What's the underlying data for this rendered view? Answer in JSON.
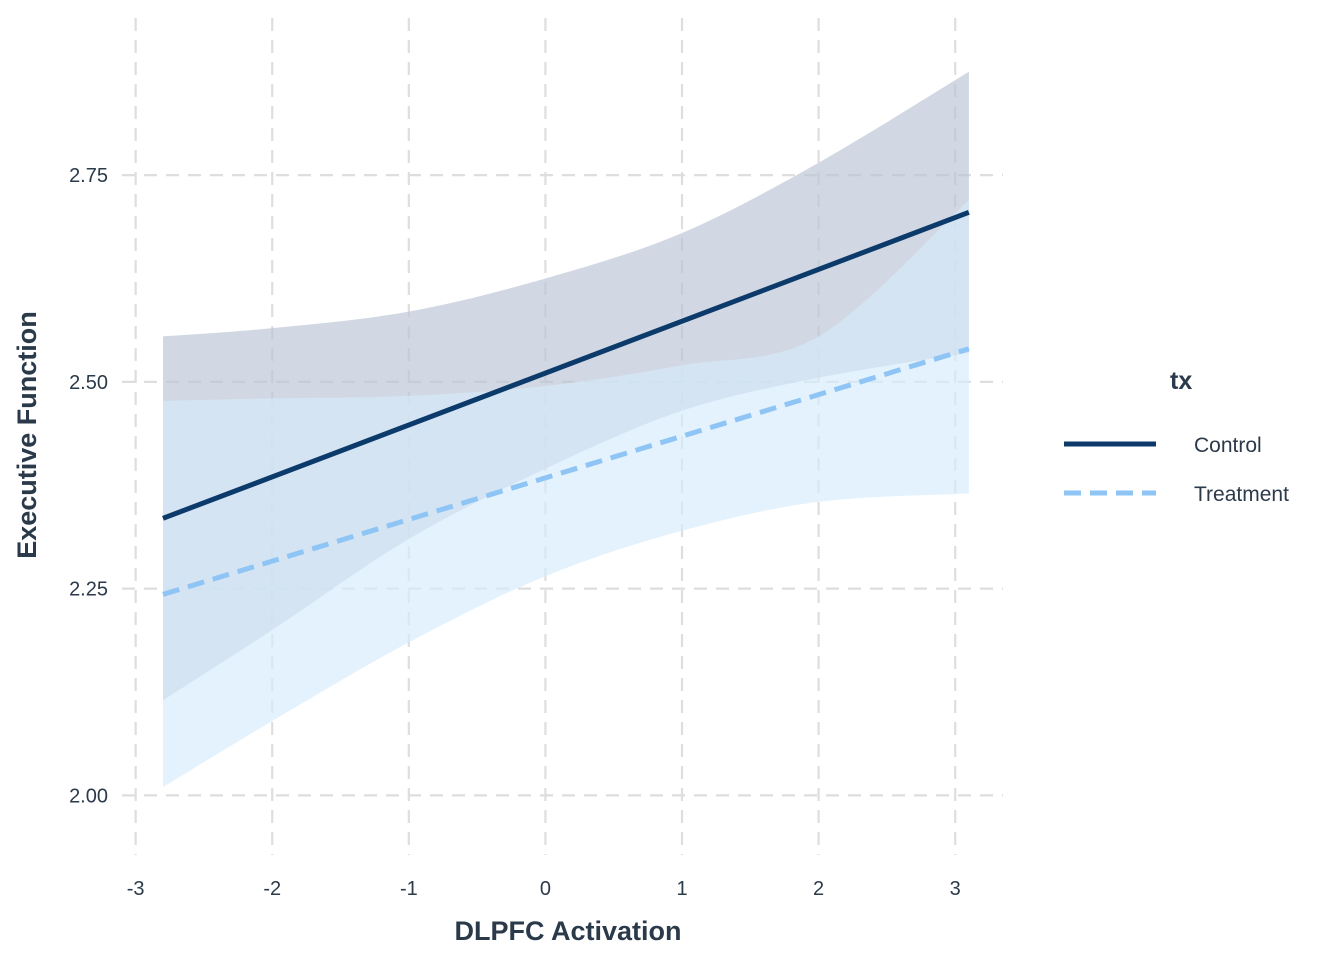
{
  "chart_data": {
    "type": "line",
    "xlabel": "DLPFC Activation",
    "ylabel": "Executive Function",
    "xlim": [
      -3.1,
      3.35
    ],
    "ylim": [
      1.94,
      2.94
    ],
    "x_ticks": [
      -3,
      -2,
      -1,
      0,
      1,
      2,
      3
    ],
    "x_tick_labels": [
      "-3",
      "-2",
      "-1",
      "0",
      "1",
      "2",
      "3"
    ],
    "y_ticks": [
      2.0,
      2.25,
      2.5,
      2.75
    ],
    "y_tick_labels": [
      "2.00",
      "2.25",
      "2.50",
      "2.75"
    ],
    "grid": true,
    "legend": {
      "title": "tx",
      "position": "right"
    },
    "series": [
      {
        "name": "Control",
        "color": "#0b3a6b",
        "line_style": "solid",
        "ribbon_color": "#b9c3d4",
        "x": [
          -2.8,
          3.1
        ],
        "y": [
          2.335,
          2.705
        ],
        "ci_x": [
          -2.8,
          -2,
          -1,
          0,
          1,
          2,
          3.1
        ],
        "ci_lower": [
          2.115,
          2.2,
          2.31,
          2.395,
          2.465,
          2.505,
          2.535
        ],
        "ci_upper": [
          2.555,
          2.565,
          2.585,
          2.625,
          2.68,
          2.765,
          2.875
        ]
      },
      {
        "name": "Treatment",
        "color": "#8ec5f5",
        "line_style": "dashed",
        "ribbon_color": "#d6ebfc",
        "x": [
          -2.8,
          3.1
        ],
        "y": [
          2.243,
          2.54
        ],
        "ci_x": [
          -2.8,
          -2,
          -1,
          0,
          1,
          2,
          3.1
        ],
        "ci_lower": [
          2.01,
          2.09,
          2.185,
          2.265,
          2.32,
          2.355,
          2.365
        ],
        "ci_upper": [
          2.477,
          2.48,
          2.483,
          2.495,
          2.52,
          2.555,
          2.72
        ]
      }
    ]
  }
}
